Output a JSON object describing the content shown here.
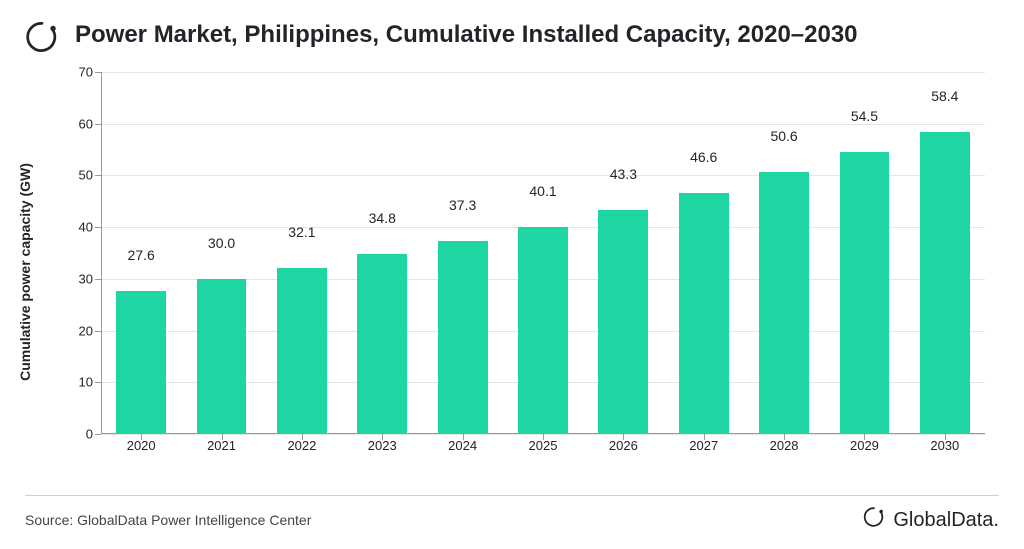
{
  "header": {
    "title": "Power Market, Philippines, Cumulative Installed Capacity, 2020–2030"
  },
  "chart": {
    "type": "bar",
    "yaxis_title": "Cumulative power capacity (GW)",
    "categories": [
      "2020",
      "2021",
      "2022",
      "2023",
      "2024",
      "2025",
      "2026",
      "2027",
      "2028",
      "2029",
      "2030"
    ],
    "values": [
      27.6,
      30.0,
      32.1,
      34.8,
      37.3,
      40.1,
      43.3,
      46.6,
      50.6,
      54.5,
      58.4
    ],
    "value_labels": [
      "27.6",
      "30.0",
      "32.1",
      "34.8",
      "37.3",
      "40.1",
      "43.3",
      "46.6",
      "50.6",
      "54.5",
      "58.4"
    ],
    "ylim": [
      0,
      70
    ],
    "ytick_step": 10,
    "bar_color": "#1dd6a4",
    "grid_color": "#e5e5e5",
    "axis_color": "#999999",
    "background_color": "#ffffff",
    "bar_width_ratio": 0.62,
    "label_fontsize": 14,
    "title_fontsize": 24,
    "tick_fontsize": 13
  },
  "footer": {
    "source": "Source: GlobalData Power Intelligence Center",
    "brand": "GlobalData."
  }
}
